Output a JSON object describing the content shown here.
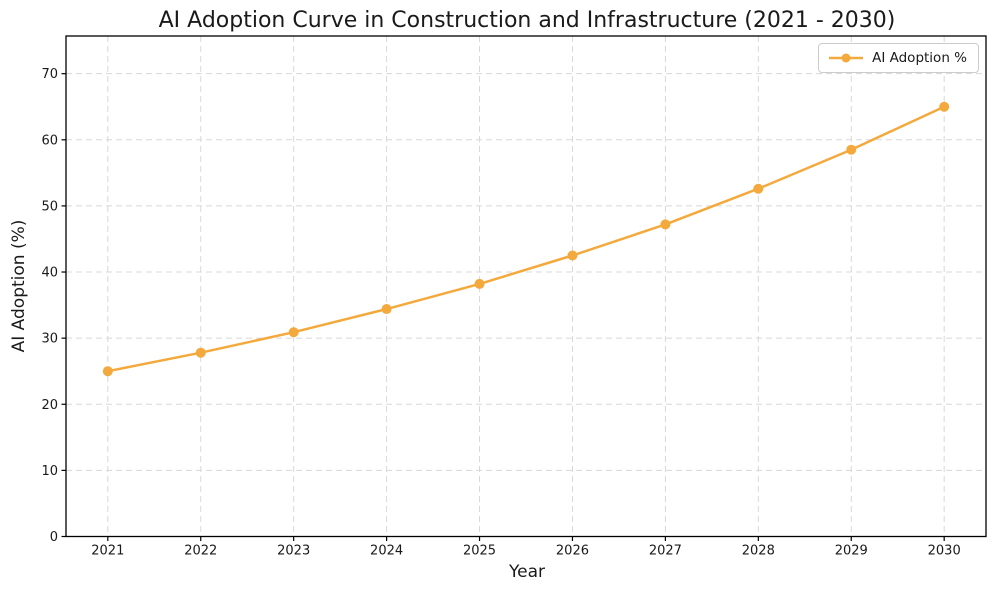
{
  "chart_data": {
    "type": "line",
    "title": "AI Adoption Curve in Construction and Infrastructure (2021 - 2030)",
    "xlabel": "Year",
    "ylabel": "AI Adoption (%)",
    "x": [
      2021,
      2022,
      2023,
      2024,
      2025,
      2026,
      2027,
      2028,
      2029,
      2030
    ],
    "series": [
      {
        "name": "AI Adoption %",
        "values": [
          25.0,
          27.8,
          30.9,
          34.4,
          38.2,
          42.5,
          47.2,
          52.6,
          58.5,
          65.0
        ],
        "color": "#F4A93D",
        "marker": "circle",
        "marker_radius": 5,
        "line_width": 2.5
      }
    ],
    "xticks": [
      "2021",
      "2022",
      "2023",
      "2024",
      "2025",
      "2026",
      "2027",
      "2028",
      "2029",
      "2030"
    ],
    "yticks": [
      0,
      10,
      20,
      30,
      40,
      50,
      60,
      70
    ],
    "xlim": [
      2020.55,
      2030.45
    ],
    "ylim": [
      0,
      75.7
    ],
    "grid": true,
    "grid_style": "dashed",
    "grid_color": "#D8D8D8",
    "axis_color": "#000000",
    "tick_label_color": "#1A1A1A",
    "legend": {
      "position": "upper right",
      "label": "AI Adoption %"
    }
  }
}
